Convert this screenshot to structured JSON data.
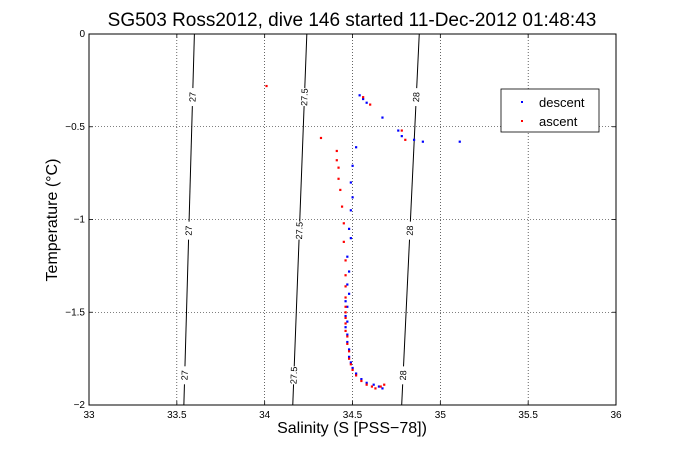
{
  "chart_data": {
    "type": "scatter",
    "title": "SG503 Ross2012, dive 146 started 11-Dec-2012 01:48:43",
    "xlabel": "Salinity (S [PSS−78])",
    "ylabel": "Temperature (°C)",
    "xlim": [
      33,
      36
    ],
    "ylim": [
      -2,
      0
    ],
    "xticks": [
      {
        "v": 33,
        "label": "33"
      },
      {
        "v": 33.5,
        "label": "33.5"
      },
      {
        "v": 34,
        "label": "34"
      },
      {
        "v": 34.5,
        "label": "34.5"
      },
      {
        "v": 35,
        "label": "35"
      },
      {
        "v": 35.5,
        "label": "35.5"
      },
      {
        "v": 36,
        "label": "36"
      }
    ],
    "yticks": [
      {
        "v": 0,
        "label": "0"
      },
      {
        "v": -0.5,
        "label": "−0.5"
      },
      {
        "v": -1,
        "label": "−1"
      },
      {
        "v": -1.5,
        "label": "−1.5"
      },
      {
        "v": -2,
        "label": "−2"
      }
    ],
    "grid": true,
    "legend_position": "top-right",
    "series": [
      {
        "name": "descent",
        "color": "#0000ff",
        "points": [
          [
            34.54,
            -0.33
          ],
          [
            34.56,
            -0.35
          ],
          [
            34.58,
            -0.37
          ],
          [
            34.67,
            -0.45
          ],
          [
            34.76,
            -0.52
          ],
          [
            34.78,
            -0.55
          ],
          [
            34.85,
            -0.57
          ],
          [
            34.9,
            -0.58
          ],
          [
            35.11,
            -0.58
          ],
          [
            34.52,
            -0.61
          ],
          [
            34.5,
            -0.71
          ],
          [
            34.49,
            -0.8
          ],
          [
            34.5,
            -0.88
          ],
          [
            34.49,
            -0.95
          ],
          [
            34.48,
            -1.05
          ],
          [
            34.49,
            -1.1
          ],
          [
            34.47,
            -1.2
          ],
          [
            34.48,
            -1.28
          ],
          [
            34.47,
            -1.35
          ],
          [
            34.48,
            -1.4
          ],
          [
            34.46,
            -1.44
          ],
          [
            34.47,
            -1.47
          ],
          [
            34.46,
            -1.52
          ],
          [
            34.47,
            -1.55
          ],
          [
            34.46,
            -1.58
          ],
          [
            34.47,
            -1.62
          ],
          [
            34.47,
            -1.66
          ],
          [
            34.48,
            -1.7
          ],
          [
            34.48,
            -1.74
          ],
          [
            34.49,
            -1.77
          ],
          [
            34.5,
            -1.8
          ],
          [
            34.52,
            -1.83
          ],
          [
            34.55,
            -1.86
          ],
          [
            34.58,
            -1.88
          ],
          [
            34.62,
            -1.89
          ],
          [
            34.65,
            -1.9
          ],
          [
            34.67,
            -1.91
          ]
        ]
      },
      {
        "name": "ascent",
        "color": "#ff0000",
        "points": [
          [
            34.01,
            -0.28
          ],
          [
            34.56,
            -0.34
          ],
          [
            34.6,
            -0.38
          ],
          [
            34.8,
            -0.57
          ],
          [
            34.78,
            -0.52
          ],
          [
            34.32,
            -0.56
          ],
          [
            34.41,
            -0.63
          ],
          [
            34.41,
            -0.68
          ],
          [
            34.42,
            -0.72
          ],
          [
            34.42,
            -0.78
          ],
          [
            34.43,
            -0.84
          ],
          [
            34.44,
            -0.93
          ],
          [
            34.45,
            -1.02
          ],
          [
            34.45,
            -1.12
          ],
          [
            34.46,
            -1.22
          ],
          [
            34.46,
            -1.3
          ],
          [
            34.46,
            -1.36
          ],
          [
            34.46,
            -1.42
          ],
          [
            34.46,
            -1.47
          ],
          [
            34.46,
            -1.5
          ],
          [
            34.46,
            -1.53
          ],
          [
            34.46,
            -1.56
          ],
          [
            34.46,
            -1.6
          ],
          [
            34.47,
            -1.63
          ],
          [
            34.47,
            -1.67
          ],
          [
            34.48,
            -1.71
          ],
          [
            34.48,
            -1.75
          ],
          [
            34.49,
            -1.78
          ],
          [
            34.5,
            -1.81
          ],
          [
            34.52,
            -1.84
          ],
          [
            34.55,
            -1.87
          ],
          [
            34.58,
            -1.89
          ],
          [
            34.61,
            -1.9
          ],
          [
            34.63,
            -1.91
          ],
          [
            34.66,
            -1.9
          ],
          [
            34.68,
            -1.89
          ]
        ]
      }
    ],
    "density_contours": [
      {
        "label": "27",
        "labels_shown": 3,
        "line": [
          [
            33.54,
            -2
          ],
          [
            33.6,
            0
          ]
        ],
        "label_at": [
          0.08,
          0.47,
          0.83
        ]
      },
      {
        "label": "27.5",
        "labels_shown": 3,
        "line": [
          [
            34.16,
            -2
          ],
          [
            34.24,
            0
          ]
        ],
        "label_at": [
          0.08,
          0.47,
          0.83
        ]
      },
      {
        "label": "28",
        "labels_shown": 3,
        "line": [
          [
            34.78,
            -2
          ],
          [
            34.88,
            0
          ]
        ],
        "label_at": [
          0.08,
          0.47,
          0.83
        ]
      }
    ]
  }
}
